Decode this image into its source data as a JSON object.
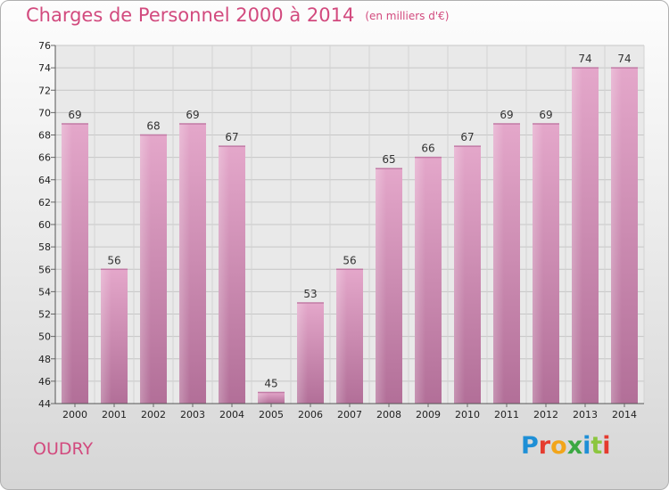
{
  "header": {
    "title": "Charges de Personnel 2000 à 2014",
    "subtitle": "(en milliers d'€)"
  },
  "footer": {
    "commune": "OUDRY",
    "brand": "Proxiti"
  },
  "colors": {
    "bar_top": "#e4a7ca",
    "bar_bottom": "#b26f98",
    "title": "#d24a7e"
  },
  "chart_data": {
    "type": "bar",
    "title": "Charges de Personnel 2000 à 2014",
    "subtitle": "(en milliers d'€)",
    "categories": [
      "2000",
      "2001",
      "2002",
      "2003",
      "2004",
      "2005",
      "2006",
      "2007",
      "2008",
      "2009",
      "2010",
      "2011",
      "2012",
      "2013",
      "2014"
    ],
    "values": [
      69,
      56,
      68,
      69,
      67,
      45,
      53,
      56,
      65,
      66,
      67,
      69,
      69,
      74,
      74
    ],
    "ylim": [
      44,
      76
    ],
    "yticks": [
      44,
      46,
      48,
      50,
      52,
      54,
      56,
      58,
      60,
      62,
      64,
      66,
      68,
      70,
      72,
      74,
      76
    ],
    "grid": true
  }
}
